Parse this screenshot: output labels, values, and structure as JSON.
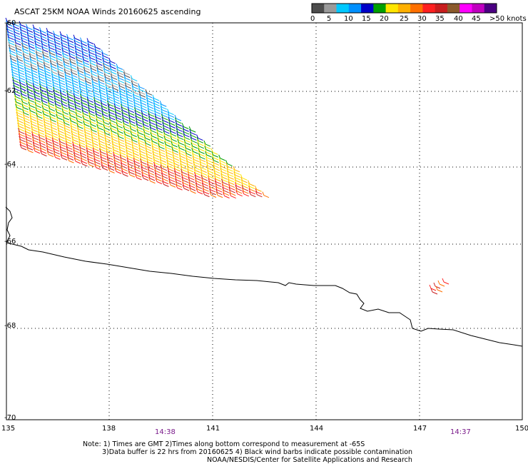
{
  "title": "ASCAT 25KM NOAA Winds 20160625 ascending",
  "legend": {
    "colors": [
      "#4d4d4d",
      "#9a9a9a",
      "#00c8ff",
      "#0090ff",
      "#0000c8",
      "#00a000",
      "#ffe600",
      "#ffb000",
      "#ff7000",
      "#ff2020",
      "#c81e1e",
      "#8b5a2b",
      "#ff00ff",
      "#c000c0",
      "#4b0082"
    ],
    "labels": [
      "0",
      "5",
      "10",
      "15",
      "20",
      "25",
      "30",
      "35",
      "40",
      "45",
      ">50 knots"
    ]
  },
  "lon_labels": [
    "135",
    "138",
    "141",
    "144",
    "147",
    "150"
  ],
  "lat_labels": [
    "-60",
    "-62",
    "-64",
    "-66",
    "-68",
    "-70"
  ],
  "time_labels": [
    "14:38",
    "14:37"
  ],
  "notes": {
    "line1": "Note: 1) Times are GMT 2)Times along bottom correspond to measurement at -65S",
    "line2": "3)Data buffer is 22 hrs from 20160625 4) Black wind barbs indicate possible contamination",
    "line3": "NOAA/NESDIS/Center for Satellite Applications and Research"
  }
}
